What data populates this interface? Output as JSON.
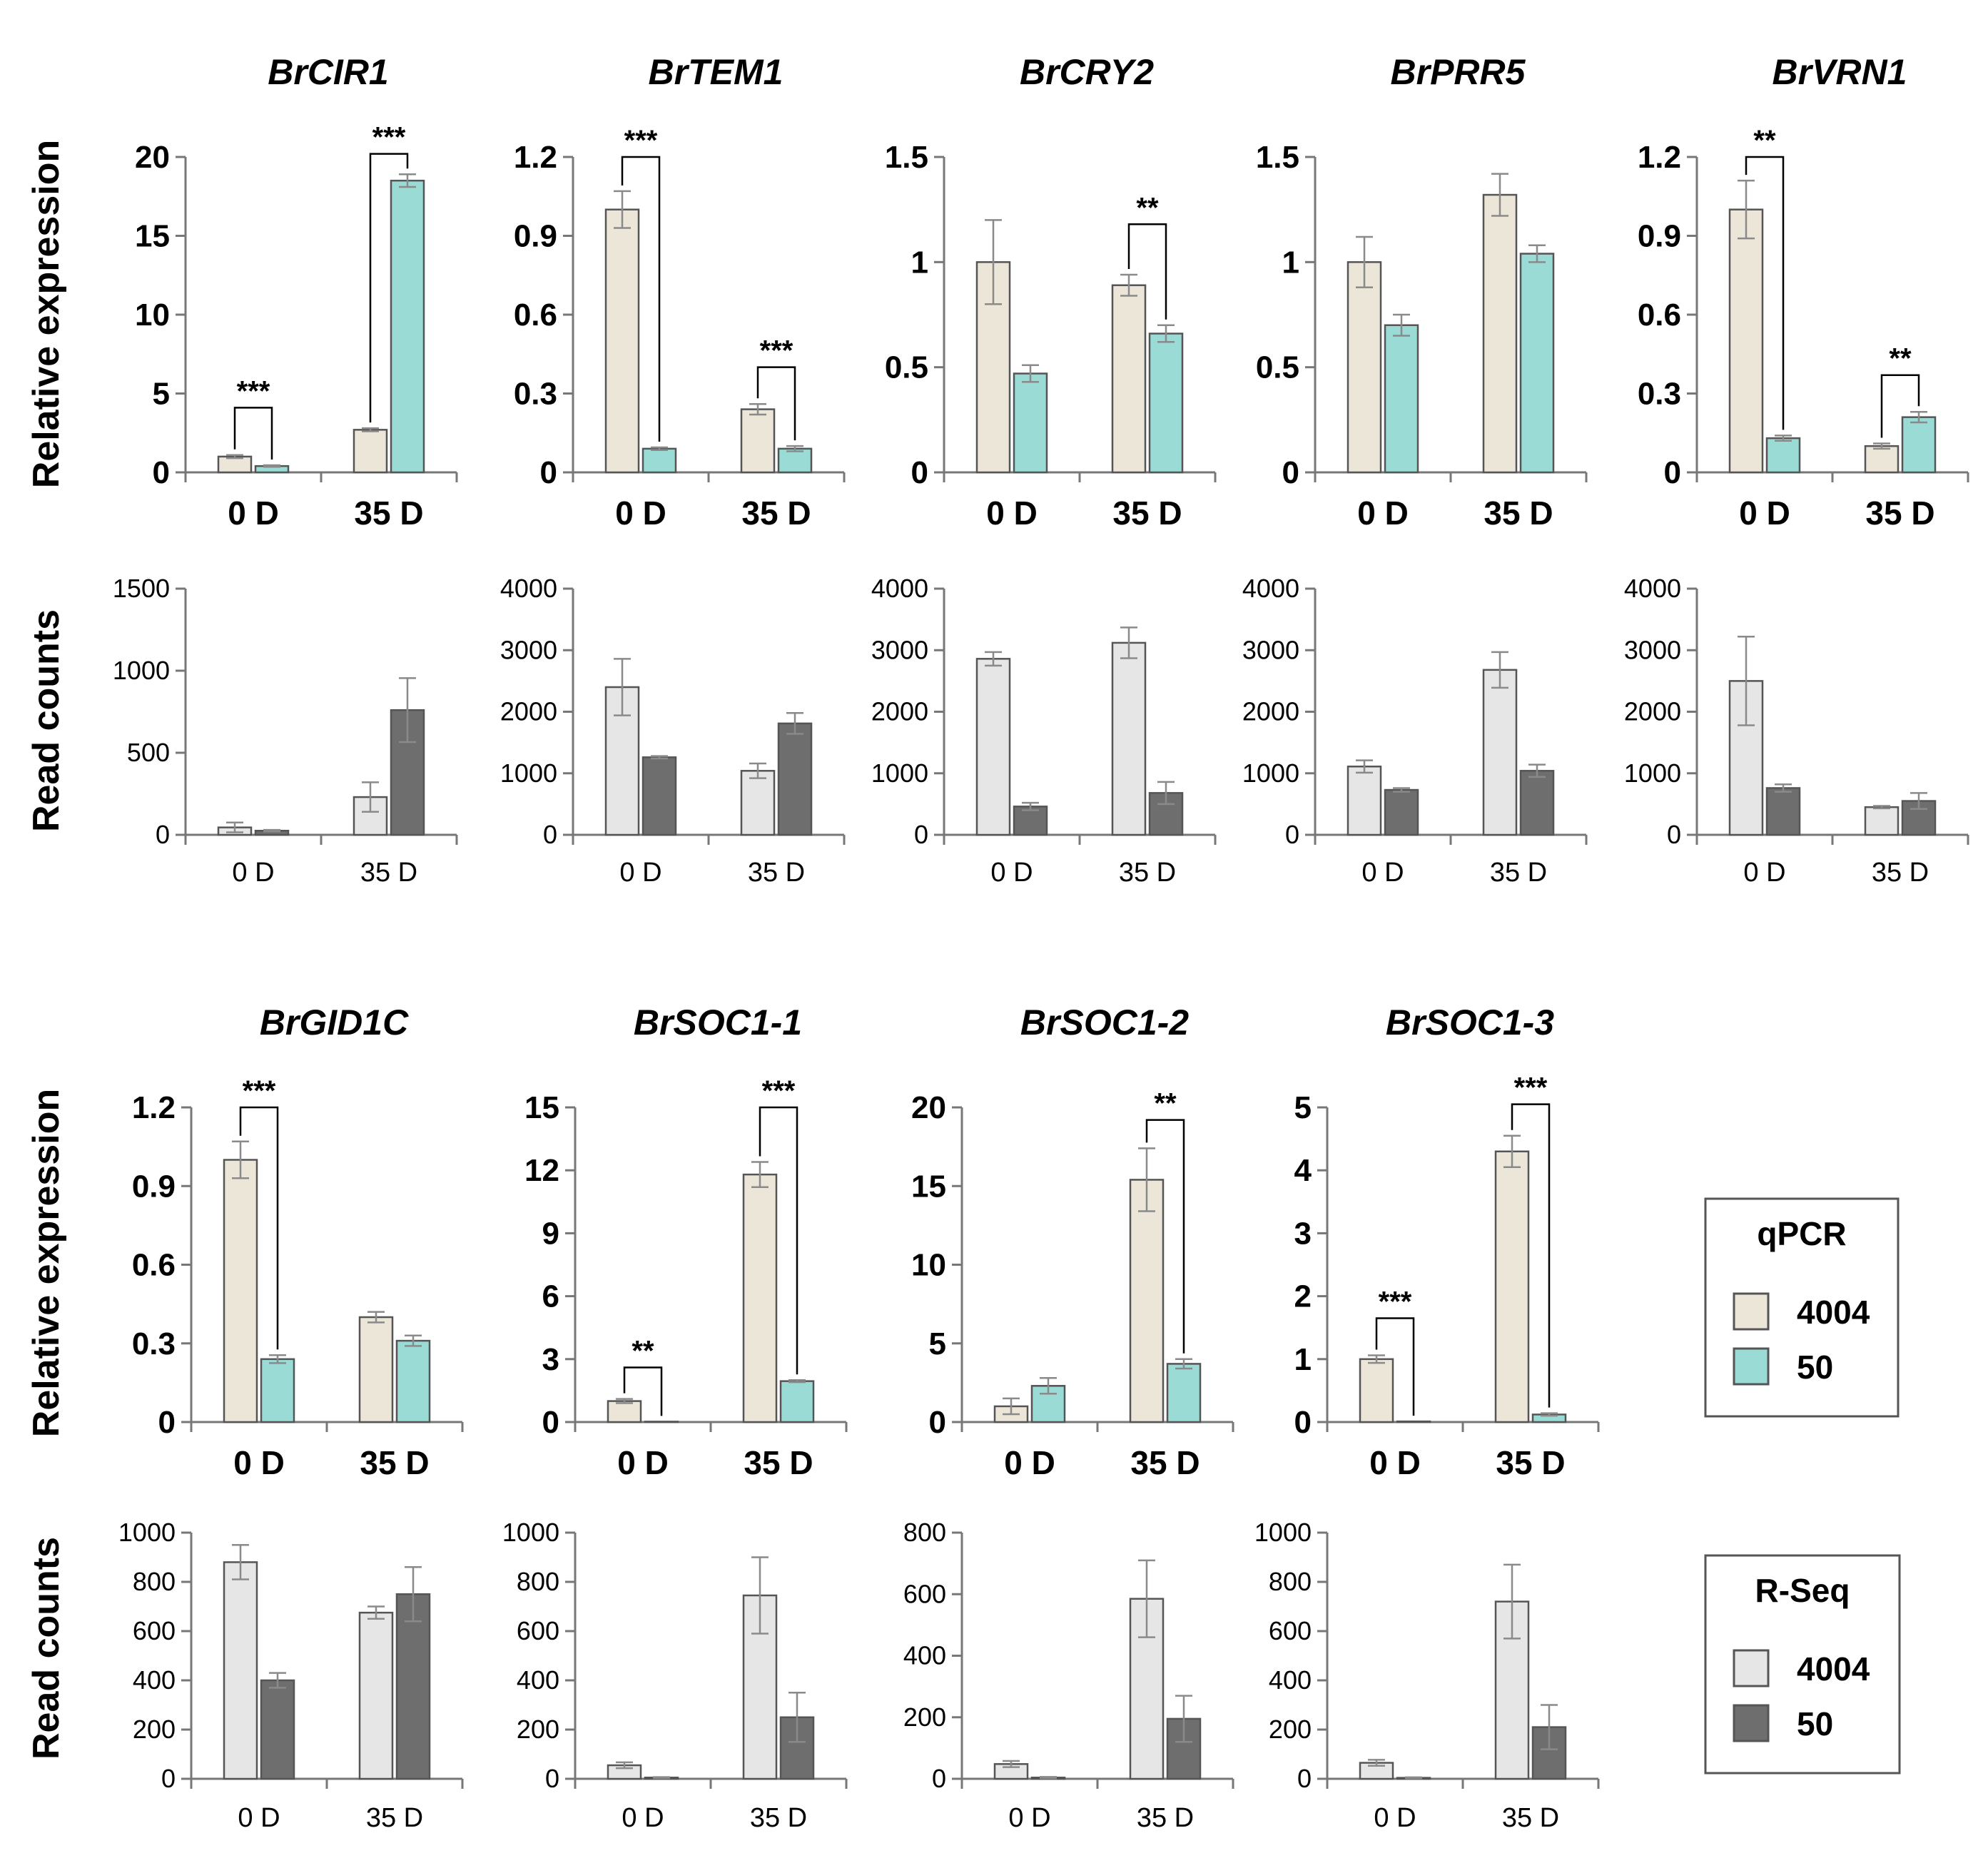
{
  "figure_ylabels": {
    "qpcr": "Relative expression",
    "rseq": "Read counts"
  },
  "legends": {
    "qpcr": {
      "title": "qPCR",
      "items": [
        {
          "label": "4004",
          "color": "#ece6d9"
        },
        {
          "label": "50",
          "color": "#9adbd6"
        }
      ]
    },
    "rseq": {
      "title": "R-Seq",
      "items": [
        {
          "label": "4004",
          "color": "#e6e6e6"
        },
        {
          "label": "50",
          "color": "#6e6e6e"
        }
      ]
    }
  },
  "colors": {
    "qpcr_4004": "#ece6d9",
    "qpcr_50": "#9adbd6",
    "rseq_4004": "#e6e6e6",
    "rseq_50": "#6e6e6e",
    "bar_stroke": "#555555",
    "error_bar": "#8a8a8a",
    "axis": "#777777"
  },
  "chart_data": [
    {
      "gene": "BrCIR1",
      "qpcr": {
        "type": "bar",
        "title": "BrCIR1",
        "ylabel": "Relative expression",
        "categories": [
          "0 D",
          "35 D"
        ],
        "yticks": [
          "0",
          "5",
          "10",
          "15",
          "20"
        ],
        "ylim": [
          0,
          20
        ],
        "series": [
          {
            "name": "4004",
            "values": [
              1.0,
              2.7
            ],
            "errors": [
              0.1,
              0.1
            ]
          },
          {
            "name": "50",
            "values": [
              0.4,
              18.5
            ],
            "errors": [
              0.05,
              0.4
            ]
          }
        ],
        "significance": [
          {
            "category": 0,
            "label": "***",
            "bracket_top": 4.1
          },
          {
            "category": 1,
            "label": "***",
            "bracket_top": 20.2
          }
        ]
      },
      "rseq": {
        "type": "bar",
        "ylabel": "Read counts",
        "categories": [
          "0 D",
          "35 D"
        ],
        "yticks": [
          "0",
          "500",
          "1000",
          "1500"
        ],
        "ylim": [
          0,
          1500
        ],
        "series": [
          {
            "name": "4004",
            "values": [
              45,
              230
            ],
            "errors": [
              30,
              90
            ]
          },
          {
            "name": "50",
            "values": [
              25,
              760
            ],
            "errors": [
              5,
              195
            ]
          }
        ]
      }
    },
    {
      "gene": "BrTEM1",
      "qpcr": {
        "type": "bar",
        "title": "BrTEM1",
        "ylabel": "Relative expression",
        "categories": [
          "0 D",
          "35 D"
        ],
        "yticks": [
          "0",
          "0.3",
          "0.6",
          "0.9",
          "1.2"
        ],
        "ylim": [
          0,
          1.2
        ],
        "series": [
          {
            "name": "4004",
            "values": [
              1.0,
              0.24
            ],
            "errors": [
              0.07,
              0.02
            ]
          },
          {
            "name": "50",
            "values": [
              0.09,
              0.09
            ],
            "errors": [
              0.005,
              0.01
            ]
          }
        ],
        "significance": [
          {
            "category": 0,
            "label": "***",
            "bracket_top": 1.2
          },
          {
            "category": 1,
            "label": "***",
            "bracket_top": 0.4
          }
        ]
      },
      "rseq": {
        "type": "bar",
        "ylabel": "Read counts",
        "categories": [
          "0 D",
          "35 D"
        ],
        "yticks": [
          "0",
          "1000",
          "2000",
          "3000",
          "4000"
        ],
        "ylim": [
          0,
          4000
        ],
        "series": [
          {
            "name": "4004",
            "values": [
              2400,
              1040
            ],
            "errors": [
              460,
              120
            ]
          },
          {
            "name": "50",
            "values": [
              1260,
              1810
            ],
            "errors": [
              20,
              170
            ]
          }
        ]
      }
    },
    {
      "gene": "BrCRY2",
      "qpcr": {
        "type": "bar",
        "title": "BrCRY2",
        "ylabel": "Relative expression",
        "categories": [
          "0 D",
          "35 D"
        ],
        "yticks": [
          "0",
          "0.5",
          "1",
          "1.5"
        ],
        "ylim": [
          0,
          1.5
        ],
        "series": [
          {
            "name": "4004",
            "values": [
              1.0,
              0.89
            ],
            "errors": [
              0.2,
              0.05
            ]
          },
          {
            "name": "50",
            "values": [
              0.47,
              0.66
            ],
            "errors": [
              0.04,
              0.04
            ]
          }
        ],
        "significance": [
          {
            "category": 1,
            "label": "**",
            "bracket_top": 1.18
          }
        ]
      },
      "rseq": {
        "type": "bar",
        "ylabel": "Read counts",
        "categories": [
          "0 D",
          "35 D"
        ],
        "yticks": [
          "0",
          "1000",
          "2000",
          "3000",
          "4000"
        ],
        "ylim": [
          0,
          4000
        ],
        "series": [
          {
            "name": "4004",
            "values": [
              2860,
              3120
            ],
            "errors": [
              110,
              250
            ]
          },
          {
            "name": "50",
            "values": [
              460,
              680
            ],
            "errors": [
              60,
              180
            ]
          }
        ]
      }
    },
    {
      "gene": "BrPRR5",
      "qpcr": {
        "type": "bar",
        "title": "BrPRR5",
        "ylabel": "Relative expression",
        "categories": [
          "0 D",
          "35 D"
        ],
        "yticks": [
          "0",
          "0.5",
          "1",
          "1.5"
        ],
        "ylim": [
          0,
          1.5
        ],
        "series": [
          {
            "name": "4004",
            "values": [
              1.0,
              1.32
            ],
            "errors": [
              0.12,
              0.1
            ]
          },
          {
            "name": "50",
            "values": [
              0.7,
              1.04
            ],
            "errors": [
              0.05,
              0.04
            ]
          }
        ],
        "significance": []
      },
      "rseq": {
        "type": "bar",
        "ylabel": "Read counts",
        "categories": [
          "0 D",
          "35 D"
        ],
        "yticks": [
          "0",
          "1000",
          "2000",
          "3000",
          "4000"
        ],
        "ylim": [
          0,
          4000
        ],
        "series": [
          {
            "name": "4004",
            "values": [
              1110,
              2680
            ],
            "errors": [
              100,
              290
            ]
          },
          {
            "name": "50",
            "values": [
              730,
              1040
            ],
            "errors": [
              30,
              100
            ]
          }
        ]
      }
    },
    {
      "gene": "BrVRN1",
      "qpcr": {
        "type": "bar",
        "title": "BrVRN1",
        "ylabel": "Relative expression",
        "categories": [
          "0 D",
          "35 D"
        ],
        "yticks": [
          "0",
          "0.3",
          "0.6",
          "0.9",
          "1.2"
        ],
        "ylim": [
          0,
          1.2
        ],
        "series": [
          {
            "name": "4004",
            "values": [
              1.0,
              0.1
            ],
            "errors": [
              0.11,
              0.01
            ]
          },
          {
            "name": "50",
            "values": [
              0.13,
              0.21
            ],
            "errors": [
              0.01,
              0.02
            ]
          }
        ],
        "significance": [
          {
            "category": 0,
            "label": "**",
            "bracket_top": 1.2
          },
          {
            "category": 1,
            "label": "**",
            "bracket_top": 0.37
          }
        ]
      },
      "rseq": {
        "type": "bar",
        "ylabel": "Read counts",
        "categories": [
          "0 D",
          "35 D"
        ],
        "yticks": [
          "0",
          "1000",
          "2000",
          "3000",
          "4000"
        ],
        "ylim": [
          0,
          4000
        ],
        "series": [
          {
            "name": "4004",
            "values": [
              2500,
              450
            ],
            "errors": [
              720,
              20
            ]
          },
          {
            "name": "50",
            "values": [
              760,
              550
            ],
            "errors": [
              60,
              130
            ]
          }
        ]
      }
    },
    {
      "gene": "BrGID1C",
      "qpcr": {
        "type": "bar",
        "title": "BrGID1C",
        "ylabel": "Relative expression",
        "categories": [
          "0 D",
          "35 D"
        ],
        "yticks": [
          "0",
          "0.3",
          "0.6",
          "0.9",
          "1.2"
        ],
        "ylim": [
          0,
          1.2
        ],
        "series": [
          {
            "name": "4004",
            "values": [
              1.0,
              0.4
            ],
            "errors": [
              0.07,
              0.02
            ]
          },
          {
            "name": "50",
            "values": [
              0.24,
              0.31
            ],
            "errors": [
              0.015,
              0.02
            ]
          }
        ],
        "significance": [
          {
            "category": 0,
            "label": "***",
            "bracket_top": 1.2
          }
        ]
      },
      "rseq": {
        "type": "bar",
        "ylabel": "Read counts",
        "categories": [
          "0 D",
          "35 D"
        ],
        "yticks": [
          "0",
          "200",
          "400",
          "600",
          "800",
          "1000"
        ],
        "ylim": [
          0,
          1000
        ],
        "series": [
          {
            "name": "4004",
            "values": [
              880,
              675
            ],
            "errors": [
              70,
              25
            ]
          },
          {
            "name": "50",
            "values": [
              400,
              750
            ],
            "errors": [
              30,
              110
            ]
          }
        ]
      }
    },
    {
      "gene": "BrSOC1-1",
      "qpcr": {
        "type": "bar",
        "title": "BrSOC1-1",
        "ylabel": "Relative expression",
        "categories": [
          "0 D",
          "35 D"
        ],
        "yticks": [
          "0",
          "3",
          "6",
          "9",
          "12",
          "15"
        ],
        "ylim": [
          0,
          15
        ],
        "series": [
          {
            "name": "4004",
            "values": [
              1.0,
              11.8
            ],
            "errors": [
              0.1,
              0.6
            ]
          },
          {
            "name": "50",
            "values": [
              0.02,
              1.95
            ],
            "errors": [
              0.0,
              0.05
            ]
          }
        ],
        "significance": [
          {
            "category": 0,
            "label": "**",
            "bracket_top": 2.6
          },
          {
            "category": 1,
            "label": "***",
            "bracket_top": 15.0
          }
        ]
      },
      "rseq": {
        "type": "bar",
        "ylabel": "Read counts",
        "categories": [
          "0 D",
          "35 D"
        ],
        "yticks": [
          "0",
          "200",
          "400",
          "600",
          "800",
          "1000"
        ],
        "ylim": [
          0,
          1000
        ],
        "series": [
          {
            "name": "4004",
            "values": [
              55,
              745
            ],
            "errors": [
              12,
              155
            ]
          },
          {
            "name": "50",
            "values": [
              5,
              250
            ],
            "errors": [
              2,
              100
            ]
          }
        ]
      }
    },
    {
      "gene": "BrSOC1-2",
      "qpcr": {
        "type": "bar",
        "title": "BrSOC1-2",
        "ylabel": "Relative expression",
        "categories": [
          "0 D",
          "35 D"
        ],
        "yticks": [
          "0",
          "5",
          "10",
          "15",
          "20"
        ],
        "ylim": [
          0,
          20
        ],
        "series": [
          {
            "name": "4004",
            "values": [
              1.0,
              15.4
            ],
            "errors": [
              0.5,
              2.0
            ]
          },
          {
            "name": "50",
            "values": [
              2.3,
              3.7
            ],
            "errors": [
              0.5,
              0.3
            ]
          }
        ],
        "significance": [
          {
            "category": 1,
            "label": "**",
            "bracket_top": 19.2
          }
        ]
      },
      "rseq": {
        "type": "bar",
        "ylabel": "Read counts",
        "categories": [
          "0 D",
          "35 D"
        ],
        "yticks": [
          "0",
          "200",
          "400",
          "600",
          "800"
        ],
        "ylim": [
          0,
          800
        ],
        "series": [
          {
            "name": "4004",
            "values": [
              48,
              585
            ],
            "errors": [
              10,
              125
            ]
          },
          {
            "name": "50",
            "values": [
              4,
              195
            ],
            "errors": [
              2,
              75
            ]
          }
        ]
      }
    },
    {
      "gene": "BrSOC1-3",
      "qpcr": {
        "type": "bar",
        "title": "BrSOC1-3",
        "ylabel": "Relative expression",
        "categories": [
          "0 D",
          "35 D"
        ],
        "yticks": [
          "0",
          "1",
          "2",
          "3",
          "4",
          "5"
        ],
        "ylim": [
          0,
          5
        ],
        "series": [
          {
            "name": "4004",
            "values": [
              1.0,
              4.3
            ],
            "errors": [
              0.06,
              0.25
            ]
          },
          {
            "name": "50",
            "values": [
              0.01,
              0.12
            ],
            "errors": [
              0.0,
              0.02
            ]
          }
        ],
        "significance": [
          {
            "category": 0,
            "label": "***",
            "bracket_top": 1.65
          },
          {
            "category": 1,
            "label": "***",
            "bracket_top": 5.05
          }
        ]
      },
      "rseq": {
        "type": "bar",
        "ylabel": "Read counts",
        "categories": [
          "0 D",
          "35 D"
        ],
        "yticks": [
          "0",
          "200",
          "400",
          "600",
          "800",
          "1000"
        ],
        "ylim": [
          0,
          1000
        ],
        "series": [
          {
            "name": "4004",
            "values": [
              65,
              720
            ],
            "errors": [
              12,
              150
            ]
          },
          {
            "name": "50",
            "values": [
              4,
              210
            ],
            "errors": [
              2,
              90
            ]
          }
        ]
      }
    }
  ]
}
